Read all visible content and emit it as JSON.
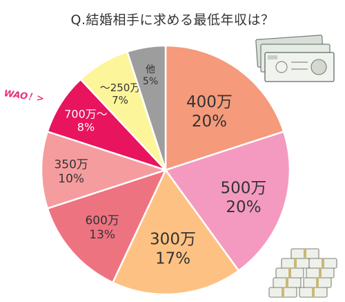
{
  "title": "Q.結婚相手に求める最低年収は？",
  "annotation": "WAO！>",
  "chart_data": {
    "type": "pie",
    "title": "Q.結婚相手に求める最低年収は？",
    "start": "12 o'clock",
    "direction": "clockwise",
    "slices": [
      {
        "label": "400万",
        "value": 20,
        "pct": "20%",
        "color": "#f59a7a",
        "text_color": "#333333"
      },
      {
        "label": "500万",
        "value": 20,
        "pct": "20%",
        "color": "#f49ac1",
        "text_color": "#333333"
      },
      {
        "label": "300万",
        "value": 17,
        "pct": "17%",
        "color": "#fdc283",
        "text_color": "#333333"
      },
      {
        "label": "600万",
        "value": 13,
        "pct": "13%",
        "color": "#ee7381",
        "text_color": "#333333"
      },
      {
        "label": "350万",
        "value": 10,
        "pct": "10%",
        "color": "#f59c9e",
        "text_color": "#333333"
      },
      {
        "label": "700万～",
        "value": 8,
        "pct": "8%",
        "color": "#e8145d",
        "text_color": "#ffffff"
      },
      {
        "label": "～250万",
        "value": 7,
        "pct": "7%",
        "color": "#fdf59a",
        "text_color": "#333333"
      },
      {
        "label": "他",
        "value": 5,
        "pct": "5%",
        "color": "#9d9d9d",
        "text_color": "#333333"
      }
    ]
  },
  "icons": [
    "stacked-banknotes-icon",
    "money-bundles-icon"
  ]
}
